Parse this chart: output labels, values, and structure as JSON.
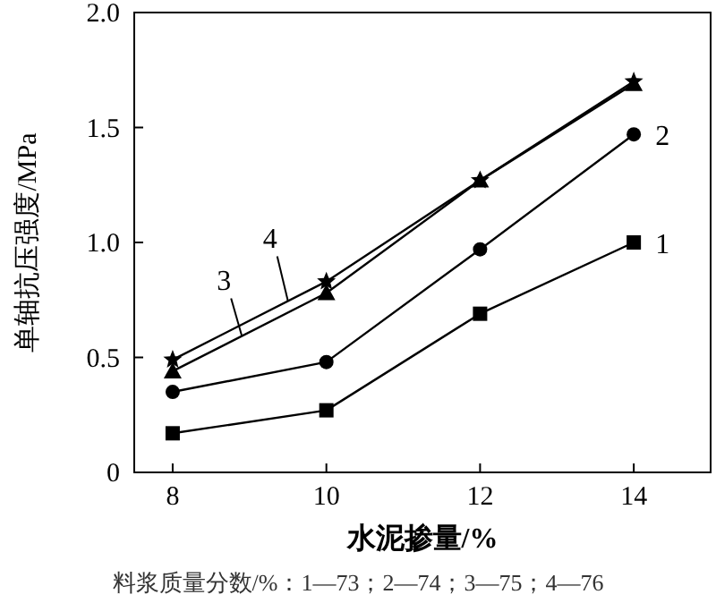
{
  "chart_data": {
    "type": "line",
    "xlabel": "水泥掺量/%",
    "ylabel": "单轴抗压强度/MPa",
    "annotations": [
      "料浆质量分数/%：1—73；2—74；3—75；4—76"
    ],
    "x": [
      8,
      10,
      12,
      14
    ],
    "xlim": [
      7.5,
      15
    ],
    "xticks": [
      8,
      10,
      12,
      14
    ],
    "ylim": [
      0,
      2.0
    ],
    "yticks": [
      0,
      {
        "value": 0.5,
        "label": "0.5"
      },
      {
        "value": 1.0,
        "label": "1.0"
      },
      {
        "value": 1.5,
        "label": "1.5"
      },
      {
        "value": 2.0,
        "label": "2.0"
      }
    ],
    "series": [
      {
        "name": "1",
        "color": "#000000",
        "marker": "square",
        "values": [
          0.17,
          0.27,
          0.69,
          1.0
        ]
      },
      {
        "name": "2",
        "color": "#000000",
        "marker": "circle",
        "values": [
          0.35,
          0.48,
          0.97,
          1.47
        ]
      },
      {
        "name": "3",
        "color": "#000000",
        "marker": "triangle",
        "values": [
          0.44,
          0.78,
          1.27,
          1.69
        ]
      },
      {
        "name": "4",
        "color": "#000000",
        "marker": "star",
        "values": [
          0.49,
          0.83,
          1.27,
          1.7
        ]
      }
    ]
  }
}
